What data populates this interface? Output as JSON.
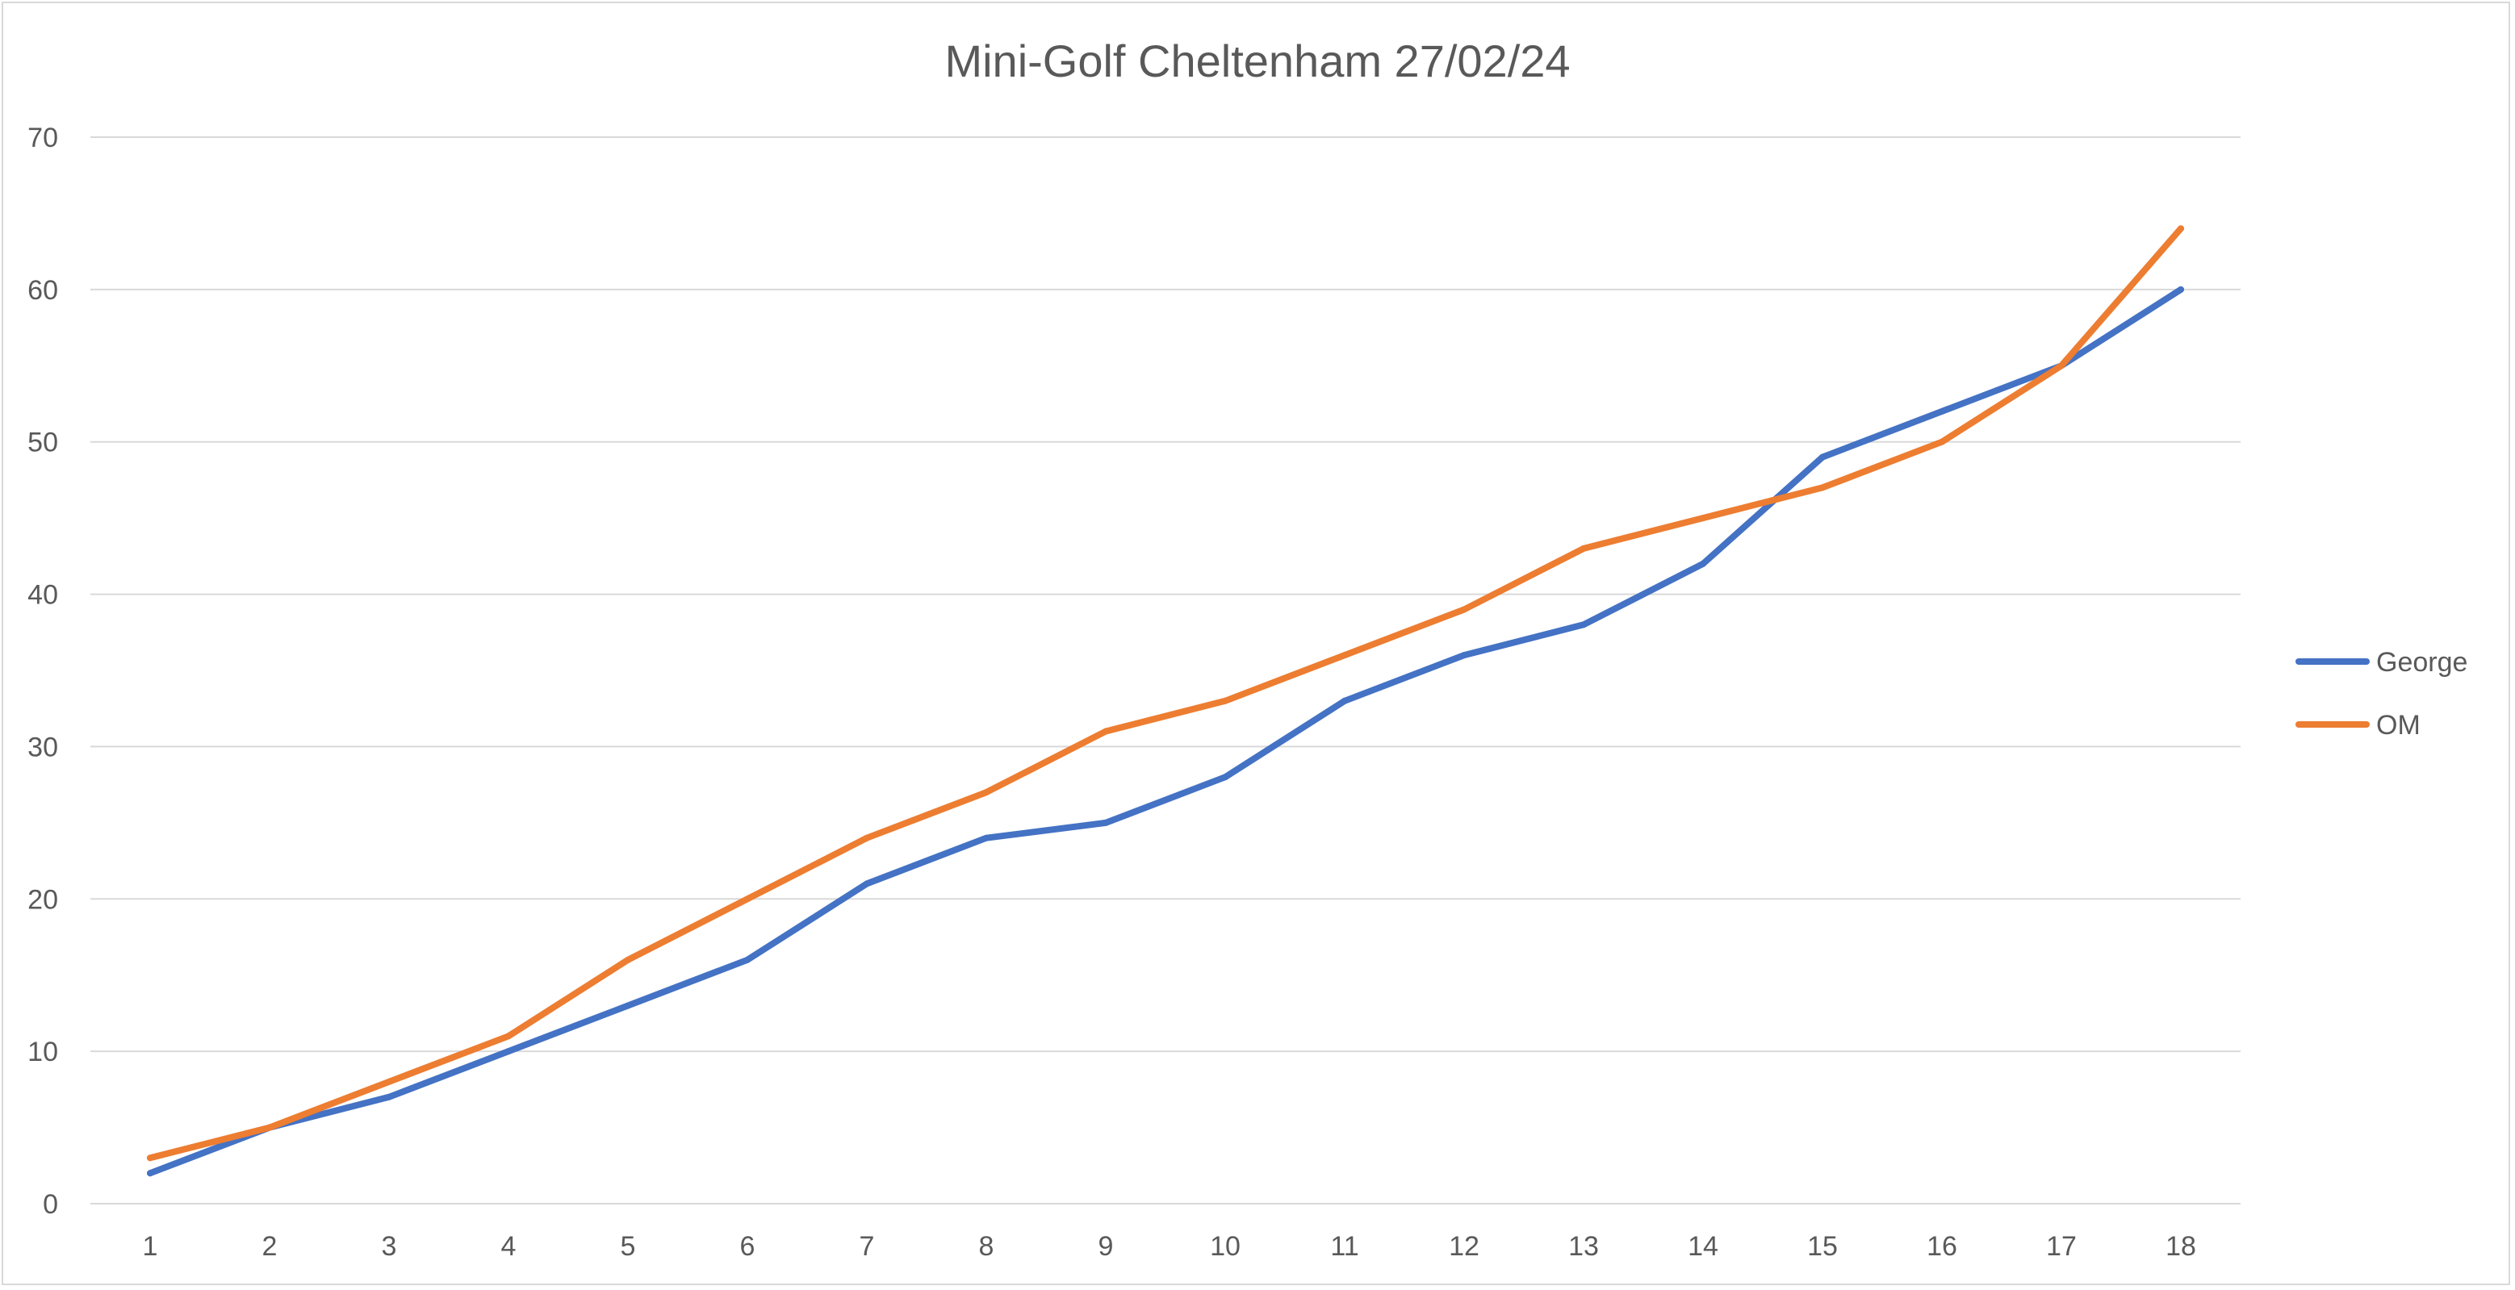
{
  "chart_data": {
    "type": "line",
    "title": "Mini-Golf Cheltenham 27/02/24",
    "xlabel": "",
    "ylabel": "",
    "x": [
      "1",
      "2",
      "3",
      "4",
      "5",
      "6",
      "7",
      "8",
      "9",
      "10",
      "11",
      "12",
      "13",
      "14",
      "15",
      "16",
      "17",
      "18"
    ],
    "ylim": [
      0,
      70
    ],
    "yticks": [
      "0",
      "10",
      "20",
      "30",
      "40",
      "50",
      "60",
      "70"
    ],
    "grid": true,
    "legend_position": "right",
    "series": [
      {
        "name": "George",
        "color": "#4472c4",
        "values": [
          2,
          5,
          7,
          10,
          13,
          16,
          21,
          24,
          25,
          28,
          33,
          36,
          38,
          42,
          49,
          52,
          55,
          60
        ]
      },
      {
        "name": "OM",
        "color": "#ed7d31",
        "values": [
          3,
          5,
          8,
          11,
          16,
          20,
          24,
          27,
          31,
          33,
          36,
          39,
          43,
          45,
          47,
          50,
          55,
          64
        ]
      }
    ]
  }
}
